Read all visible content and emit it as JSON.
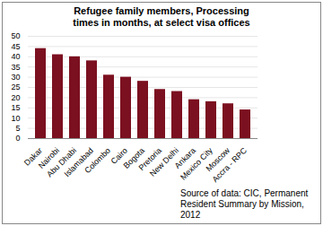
{
  "chart_data": {
    "type": "bar",
    "title": "Refugee family members, Processing times in months, at select visa offices",
    "annotation": "Source of data: CIC, Permanent Resident Summary by Mission, 2012",
    "categories": [
      "Dakar",
      "Nairobi",
      "Abu Dhabi",
      "Islamabad",
      "Colombo",
      "Cairo",
      "Bogota",
      "Pretoria",
      "New Delhi",
      "Ankara",
      "Mexico City",
      "Moscow",
      "Accra - RPC"
    ],
    "values": [
      44,
      41,
      40,
      38,
      31,
      30,
      28,
      24,
      23,
      19,
      18,
      17,
      14
    ],
    "color": "#7b1020",
    "ylim": [
      0,
      50
    ],
    "yticks": [
      0,
      5,
      10,
      15,
      20,
      25,
      30,
      35,
      40,
      45,
      50
    ],
    "grid": true
  }
}
